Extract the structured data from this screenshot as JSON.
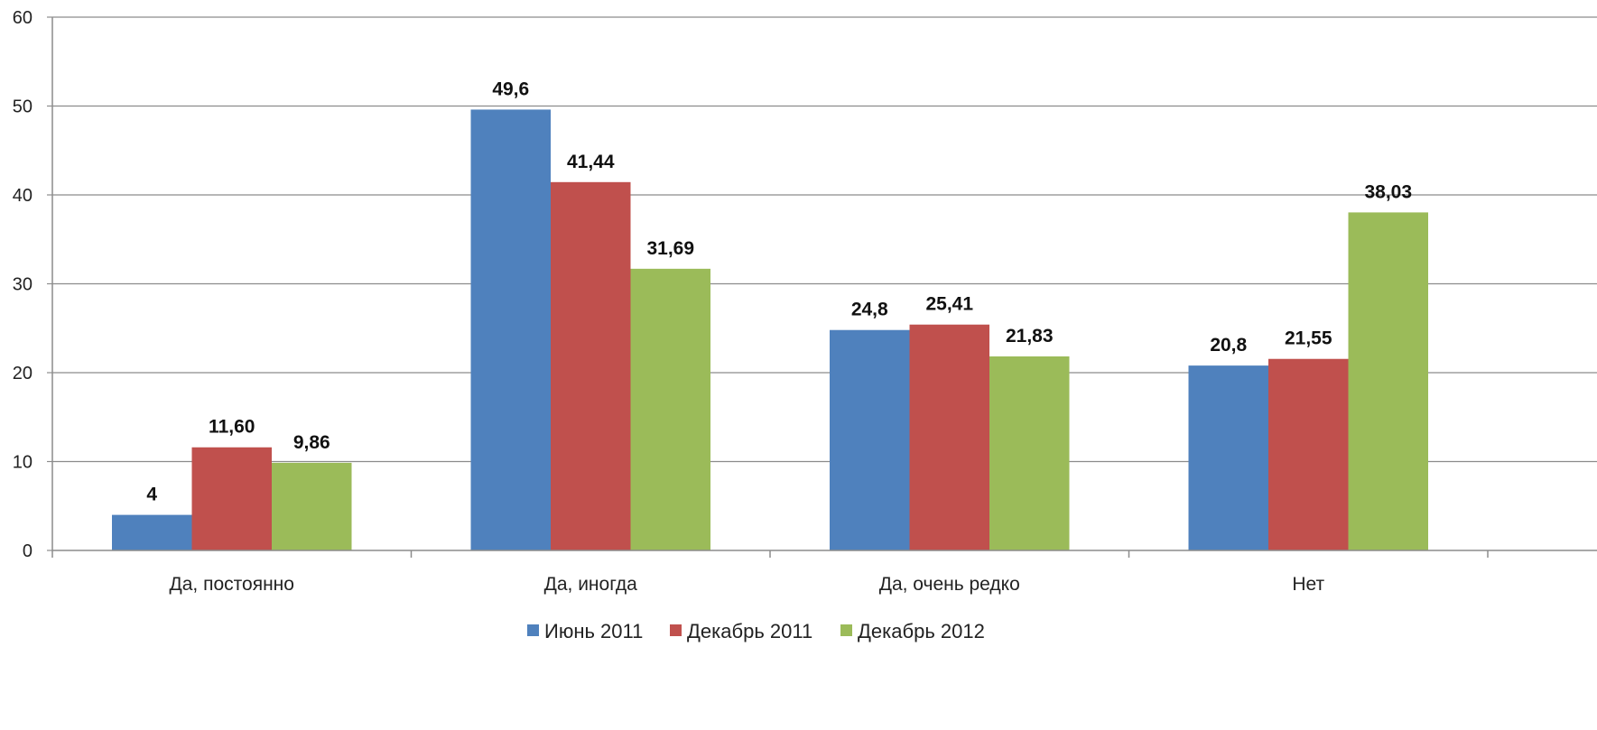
{
  "chart_data": {
    "type": "bar",
    "title": "",
    "xlabel": "",
    "ylabel": "",
    "ylim": [
      0,
      60
    ],
    "yticks": [
      0,
      10,
      20,
      30,
      40,
      50,
      60
    ],
    "categories": [
      "Да, постоянно",
      "Да, иногда",
      "Да, очень редко",
      "Нет"
    ],
    "series": [
      {
        "name": "Июнь 2011",
        "color": "#4F81BD",
        "values": [
          4,
          49.6,
          24.8,
          20.8
        ],
        "labels": [
          "4",
          "49,6",
          "24,8",
          "20,8"
        ]
      },
      {
        "name": "Декабрь 2011",
        "color": "#C0504D",
        "values": [
          11.6,
          41.44,
          25.41,
          21.55
        ],
        "labels": [
          "11,60",
          "41,44",
          "25,41",
          "21,55"
        ]
      },
      {
        "name": "Декабрь 2012",
        "color": "#9BBB59",
        "values": [
          9.86,
          31.69,
          21.83,
          38.03
        ],
        "labels": [
          "9,86",
          "31,69",
          "21,83",
          "38,03"
        ]
      }
    ],
    "grid": true,
    "legend_position": "bottom"
  }
}
